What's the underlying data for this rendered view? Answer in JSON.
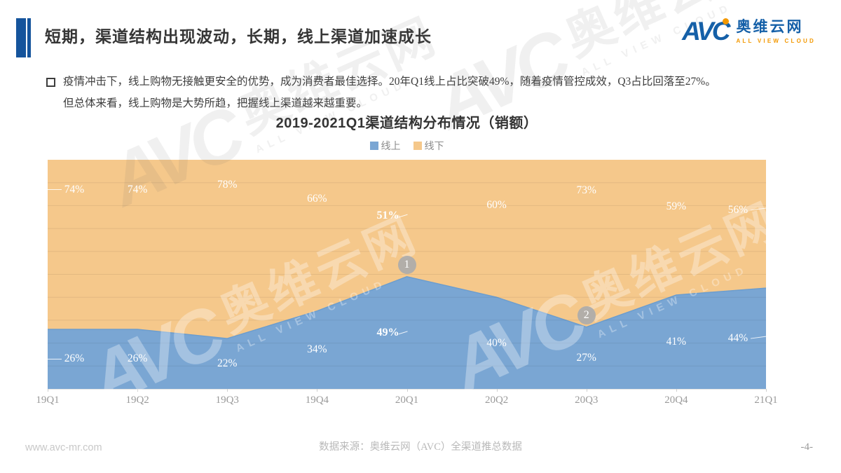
{
  "accent_color": "#15549C",
  "header": {
    "title": "短期，渠道结构出现波动，长期，线上渠道加速成长",
    "logo": {
      "avc": "AVC",
      "cn": "奥维云网",
      "en": "ALL VIEW CLOUD"
    }
  },
  "bullet": {
    "lines": [
      "疫情冲击下，线上购物无接触更安全的优势，成为消费者最佳选择。20年Q1线上占比突破49%，随着疫情管控成效，Q3占比回落至27%。",
      "但总体来看，线上购物是大势所趋，把握线上渠道越来越重要。"
    ]
  },
  "chart_data": {
    "type": "area",
    "stacked_percent": true,
    "title": "2019-2021Q1渠道结构分布情况（销额）",
    "categories": [
      "19Q1",
      "19Q2",
      "19Q3",
      "19Q4",
      "20Q1",
      "20Q2",
      "20Q3",
      "20Q4",
      "21Q1"
    ],
    "series": [
      {
        "name": "线上",
        "color": "#7AA6D3",
        "edge_color": "#6C9DCE",
        "values": [
          26,
          26,
          22,
          34,
          49,
          40,
          27,
          41,
          44
        ]
      },
      {
        "name": "线下",
        "color": "#F5C88B",
        "values": [
          74,
          74,
          78,
          66,
          51,
          60,
          73,
          59,
          56
        ]
      }
    ],
    "unit": "%",
    "ylim": [
      0,
      100
    ],
    "grid_interval": 10,
    "grid_on": true,
    "legend_position": "top-center",
    "emphasized_category": "20Q1",
    "annotations": [
      {
        "label": "1",
        "category": "20Q1"
      },
      {
        "label": "2",
        "category": "20Q3"
      }
    ]
  },
  "watermark": {
    "avc": "AVC",
    "cn": "奥维云网",
    "en": "ALL VIEW CLOUD"
  },
  "footer": {
    "website": "www.avc-mr.com",
    "source": "数据来源：奥维云网（AVC）全渠道推总数据",
    "page": "-4-"
  }
}
